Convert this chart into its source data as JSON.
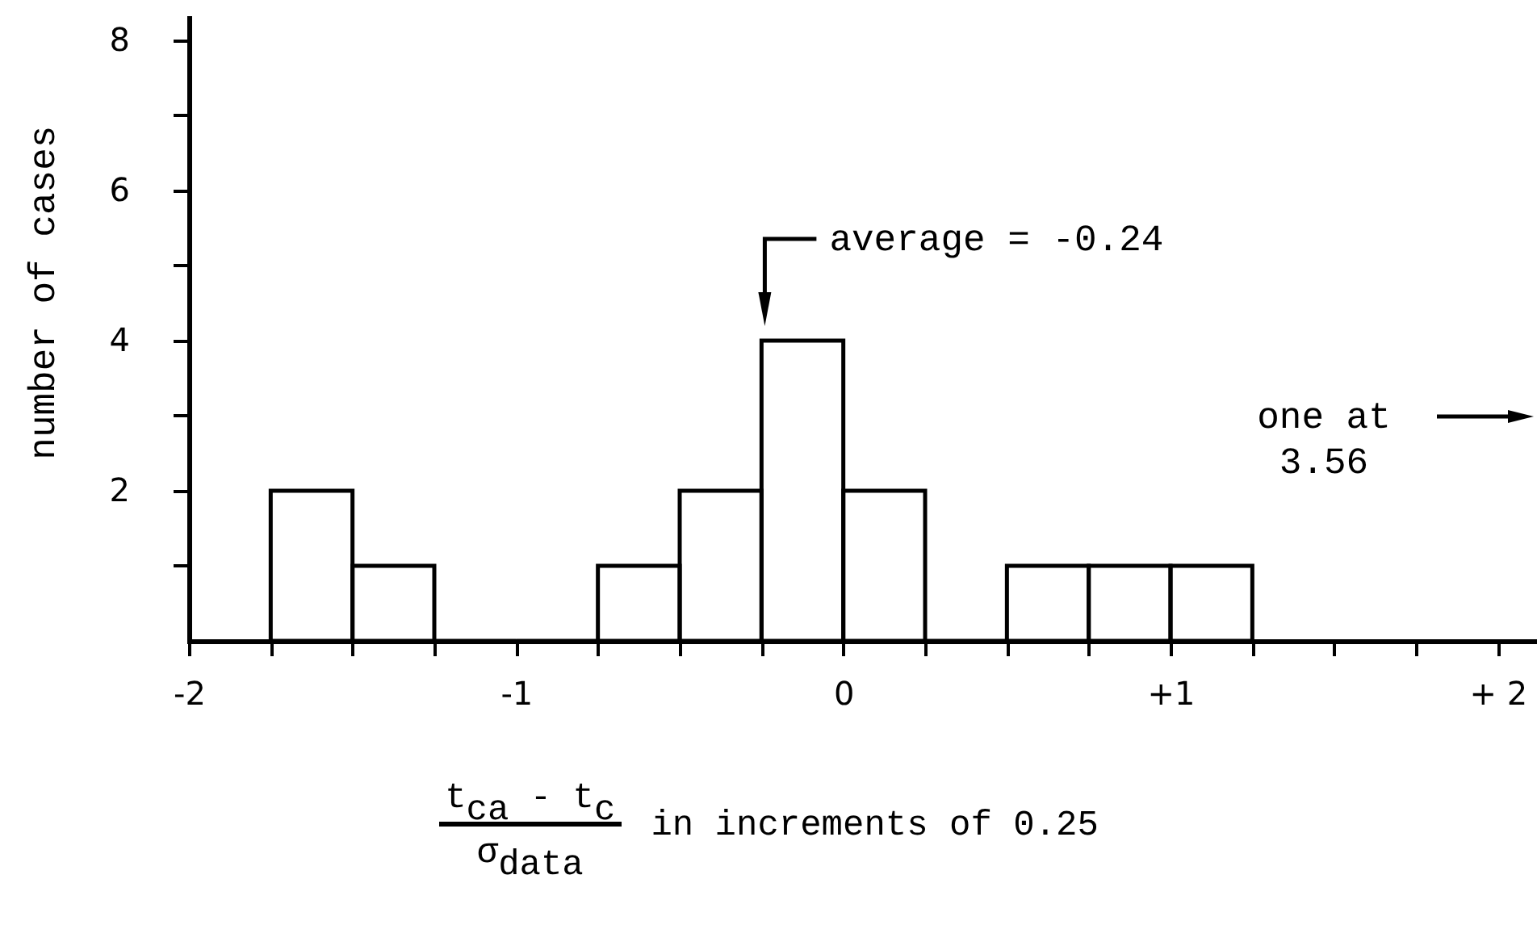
{
  "chart_data": {
    "type": "histogram",
    "xlabel": "t$_{ca}$ - t$_{c}$  σ$_{data}$  in increments of 0.25",
    "ylabel": "number of cases",
    "bins": [
      -1.75,
      -1.5,
      -1.25,
      -1,
      -0.75,
      -0.5,
      -0.25,
      0,
      0.25,
      0.5,
      0.75,
      1,
      1.25
    ],
    "values": [
      2,
      1,
      0,
      0,
      1,
      2,
      4,
      2,
      0,
      1,
      1,
      1
    ],
    "color": "#000000",
    "xlim": [
      -2,
      2.12
    ],
    "ylim": [
      0,
      8.3
    ],
    "xticks": [
      -2,
      {
        "value": -1.75,
        "label": null
      },
      {
        "value": -1.5,
        "label": null
      },
      {
        "value": -1.25,
        "label": null
      },
      -1,
      {
        "value": -0.75,
        "label": null
      },
      {
        "value": -0.5,
        "label": null
      },
      {
        "value": -0.25,
        "label": null
      },
      0,
      {
        "value": 0.25,
        "label": null
      },
      {
        "value": 0.5,
        "label": null
      },
      {
        "value": 0.75,
        "label": null
      },
      {
        "value": 1,
        "label": "+1"
      },
      {
        "value": 1.25,
        "label": null
      },
      {
        "value": 1.5,
        "label": null
      },
      {
        "value": 1.75,
        "label": null
      },
      {
        "value": 2,
        "label": "+ 2"
      }
    ],
    "yticks": [
      {
        "value": 1,
        "label": null
      },
      2,
      {
        "value": 3,
        "label": null
      },
      4,
      {
        "value": 5,
        "label": null
      },
      6,
      {
        "value": 7,
        "label": null
      },
      8
    ],
    "annotations": [
      {
        "text": "average = -0.24",
        "x": -0.24,
        "y": 4
      },
      "one at 3.56"
    ]
  }
}
